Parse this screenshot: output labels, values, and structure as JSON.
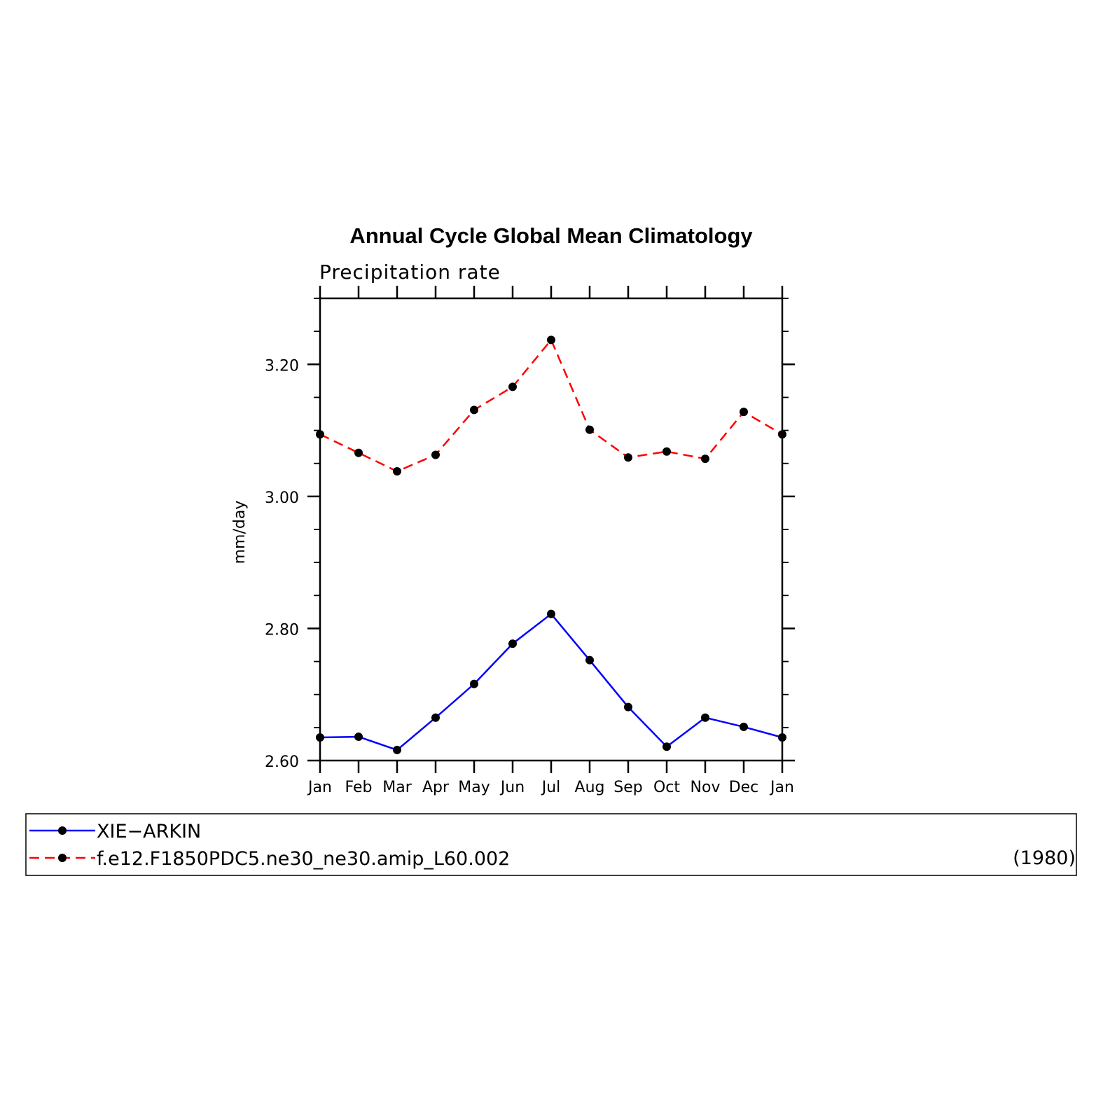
{
  "chart_data": {
    "type": "line",
    "title": "Annual Cycle Global Mean Climatology",
    "subtitle": "Precipitation rate",
    "xlabel": "",
    "ylabel": "mm/day",
    "categories": [
      "Jan",
      "Feb",
      "Mar",
      "Apr",
      "May",
      "Jun",
      "Jul",
      "Aug",
      "Sep",
      "Oct",
      "Nov",
      "Dec",
      "Jan"
    ],
    "ylim": [
      2.6,
      3.3
    ],
    "yticks": [
      2.6,
      2.8,
      3.0,
      3.2
    ],
    "ytick_labels": [
      "2.60",
      "2.80",
      "3.00",
      "3.20"
    ],
    "grid": false,
    "legend_position": "bottom",
    "series": [
      {
        "name": "XIE−ARKIN",
        "color": "#0000ff",
        "dash": "solid",
        "values": [
          2.635,
          2.636,
          2.616,
          2.665,
          2.716,
          2.777,
          2.822,
          2.752,
          2.681,
          2.621,
          2.665,
          2.651,
          2.635
        ]
      },
      {
        "name": "f.e12.F1850PDC5.ne30_ne30.amip_L60.002",
        "color": "#ff0000",
        "dash": "dashed",
        "values": [
          3.094,
          3.066,
          3.038,
          3.063,
          3.131,
          3.166,
          3.237,
          3.101,
          3.059,
          3.068,
          3.057,
          3.128,
          3.094
        ]
      }
    ],
    "legend_note": "(1980)"
  }
}
